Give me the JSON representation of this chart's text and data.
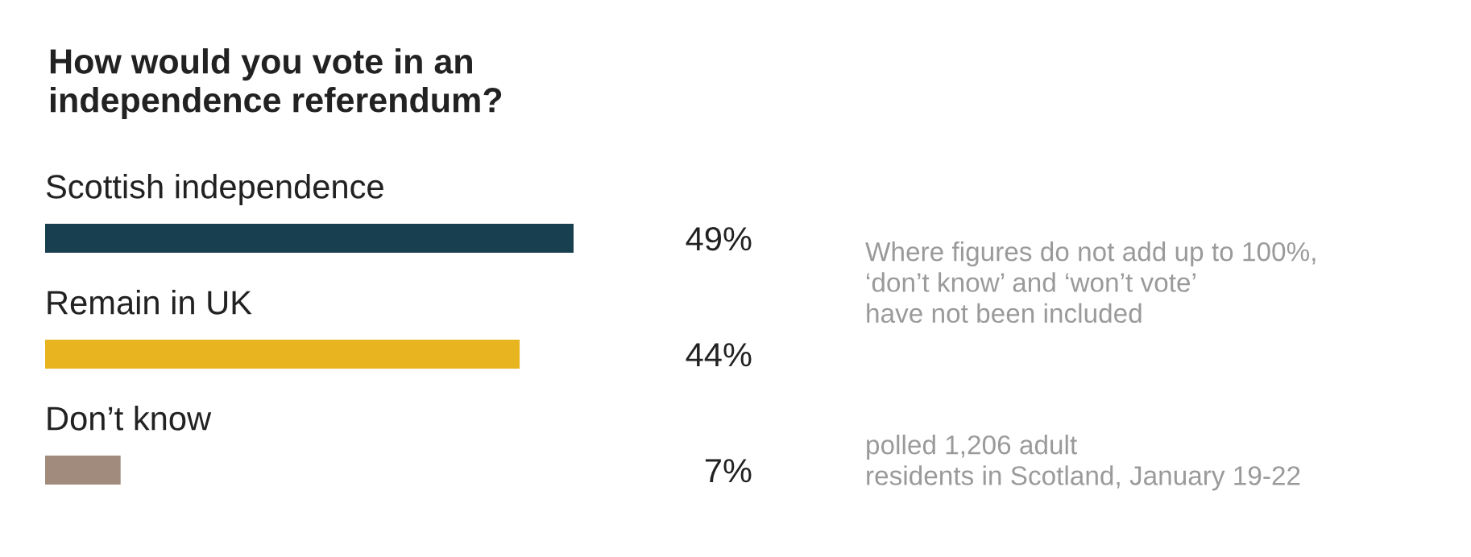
{
  "chart_data": {
    "type": "bar",
    "orientation": "horizontal",
    "title": "How would you vote in an\nindependence referendum?",
    "categories": [
      "Scottish independence",
      "Remain in UK",
      "Don’t know"
    ],
    "values": [
      49,
      44,
      7
    ],
    "colors": [
      "#173f4f",
      "#e8b521",
      "#a08b7d"
    ],
    "value_labels": [
      "49%",
      "44%",
      "7%"
    ],
    "annotations": [
      "Where figures do not add up to 100%,\n‘don’t know’ and ‘won’t vote’\nhave not been included",
      "polled 1,206 adult\nresidents in Scotland, January 19-22"
    ],
    "legend": false
  }
}
